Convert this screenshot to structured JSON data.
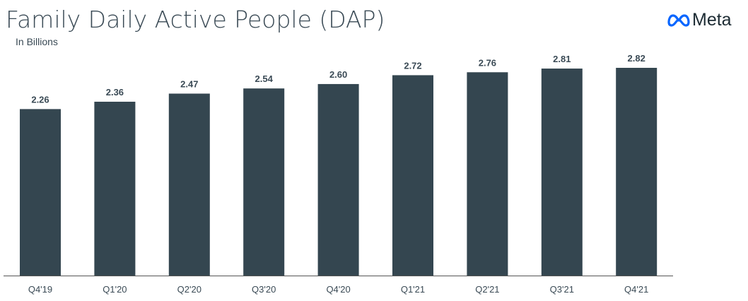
{
  "chart_data": {
    "type": "bar",
    "title": "Family Daily Active People (DAP)",
    "subtitle": "In Billions",
    "categories": [
      "Q4'19",
      "Q1'20",
      "Q2'20",
      "Q3'20",
      "Q4'20",
      "Q1'21",
      "Q2'21",
      "Q3'21",
      "Q4'21"
    ],
    "values": [
      2.26,
      2.36,
      2.47,
      2.54,
      2.6,
      2.72,
      2.76,
      2.81,
      2.82
    ],
    "value_labels": [
      "2.26",
      "2.36",
      "2.47",
      "2.54",
      "2.60",
      "2.72",
      "2.76",
      "2.81",
      "2.82"
    ],
    "xlabel": "",
    "ylabel": "",
    "ylim": [
      0,
      2.82
    ],
    "grid": false,
    "bar_color": "#344650"
  },
  "brand": {
    "logo_text": "Meta",
    "logo_color": "#0866ff"
  }
}
